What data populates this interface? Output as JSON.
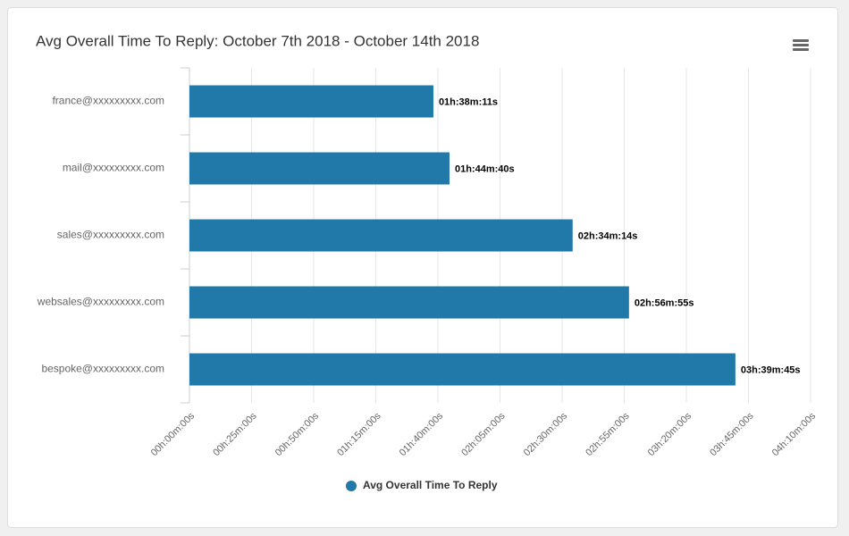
{
  "chart_data": {
    "type": "bar",
    "orientation": "horizontal",
    "title": "Avg Overall Time To Reply: October 7th 2018 - October 14th 2018",
    "categories": [
      "france@xxxxxxxxx.com",
      "mail@xxxxxxxxx.com",
      "sales@xxxxxxxxx.com",
      "websales@xxxxxxxxx.com",
      "bespoke@xxxxxxxxx.com"
    ],
    "series": [
      {
        "name": "Avg Overall Time To Reply",
        "color": "#2079a8",
        "values": [
          5891,
          6280,
          9254,
          10615,
          13185
        ],
        "value_labels": [
          "01h:38m:11s",
          "01h:44m:40s",
          "02h:34m:14s",
          "02h:56m:55s",
          "03h:39m:45s"
        ]
      }
    ],
    "xlim": [
      0,
      15000
    ],
    "xticks": [
      {
        "value": 0,
        "label": "00h:00m:00s"
      },
      {
        "value": 1500,
        "label": "00h:25m:00s"
      },
      {
        "value": 3000,
        "label": "00h:50m:00s"
      },
      {
        "value": 4500,
        "label": "01h:15m:00s"
      },
      {
        "value": 6000,
        "label": "01h:40m:00s"
      },
      {
        "value": 7500,
        "label": "02h:05m:00s"
      },
      {
        "value": 9000,
        "label": "02h:30m:00s"
      },
      {
        "value": 10500,
        "label": "02h:55m:00s"
      },
      {
        "value": 12000,
        "label": "03h:20m:00s"
      },
      {
        "value": 13500,
        "label": "03h:45m:00s"
      },
      {
        "value": 15000,
        "label": "04h:10m:00s"
      }
    ],
    "grid": true
  }
}
